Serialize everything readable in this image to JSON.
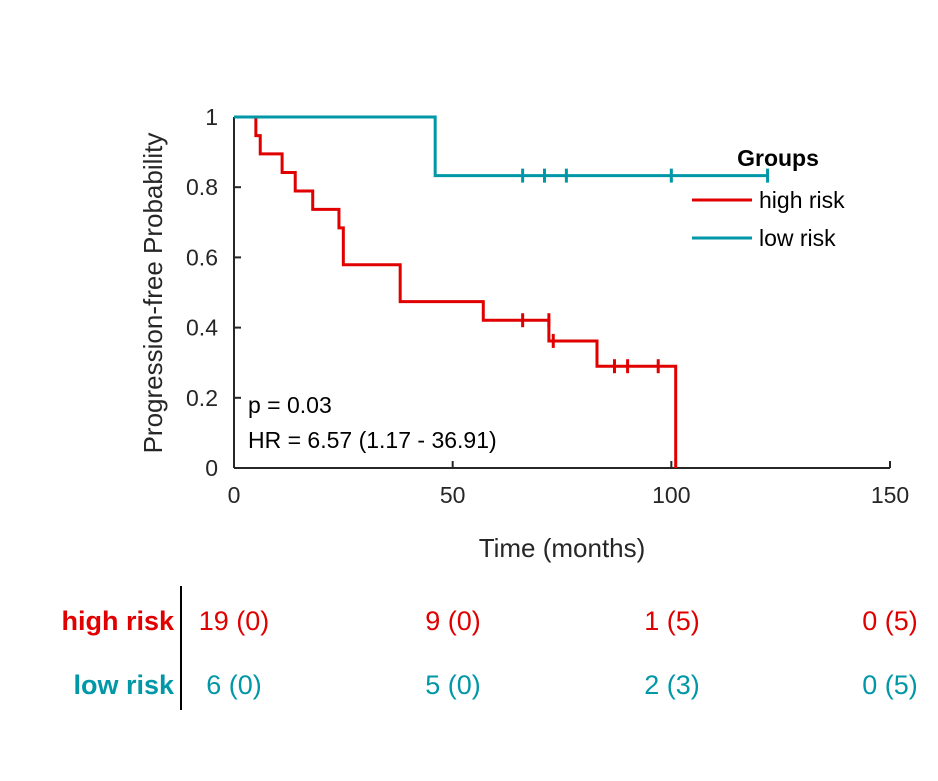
{
  "chart_data": {
    "type": "line",
    "subtype": "kaplan-meier",
    "title": "",
    "xlabel": "Time (months)",
    "ylabel": "Progression-free Probability",
    "xlim": [
      0,
      150
    ],
    "ylim": [
      0,
      1
    ],
    "x_ticks": [
      0,
      50,
      100,
      150
    ],
    "x_tick_labels": [
      "0",
      "50",
      "100",
      "150"
    ],
    "y_ticks": [
      0,
      0.2,
      0.4,
      0.6,
      0.8,
      1
    ],
    "y_tick_labels": [
      "0",
      "0.2",
      "0.4",
      "0.6",
      "0.8",
      "1"
    ],
    "grid": false,
    "legend": {
      "title": "Groups",
      "placement": "top-right"
    },
    "series": [
      {
        "name": "high risk",
        "color": "#e00000",
        "steps": [
          [
            0,
            1
          ],
          [
            5,
            0.947
          ],
          [
            6,
            0.895
          ],
          [
            11,
            0.842
          ],
          [
            14,
            0.789
          ],
          [
            18,
            0.737
          ],
          [
            24,
            0.684
          ],
          [
            25,
            0.579
          ],
          [
            38,
            0.474
          ],
          [
            57,
            0.421
          ],
          [
            72,
            0.362
          ],
          [
            83,
            0.29
          ],
          [
            101,
            0
          ]
        ],
        "censored": [
          [
            66,
            0.421
          ],
          [
            72,
            0.421
          ],
          [
            73,
            0.362
          ],
          [
            87,
            0.29
          ],
          [
            90,
            0.29
          ],
          [
            97,
            0.29
          ]
        ]
      },
      {
        "name": "low risk",
        "color": "#0097a7",
        "steps": [
          [
            0,
            1
          ],
          [
            46,
            0.833
          ],
          [
            122,
            0.833
          ]
        ],
        "censored": [
          [
            66,
            0.833
          ],
          [
            71,
            0.833
          ],
          [
            76,
            0.833
          ],
          [
            100,
            0.833
          ],
          [
            122,
            0.833
          ]
        ]
      }
    ],
    "annotations": [
      "p = 0.03",
      "HR = 6.57 (1.17 - 36.91)"
    ],
    "risk_table": {
      "times": [
        0,
        50,
        100,
        150
      ],
      "rows": [
        {
          "label": "high risk",
          "color": "#e00000",
          "values": [
            "19 (0)",
            "9 (0)",
            "1 (5)",
            "0 (5)"
          ]
        },
        {
          "label": "low risk",
          "color": "#0097a7",
          "values": [
            "6 (0)",
            "5 (0)",
            "2 (3)",
            "0 (5)"
          ]
        }
      ]
    }
  }
}
